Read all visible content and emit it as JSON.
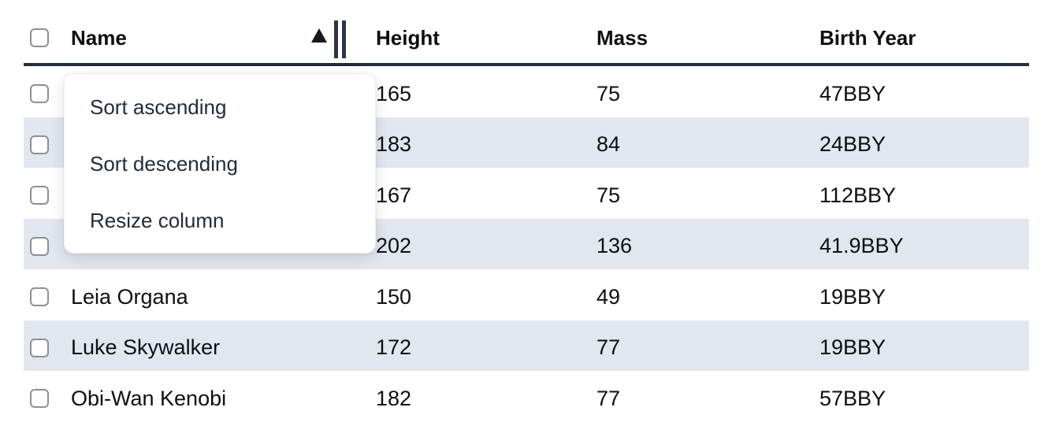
{
  "table": {
    "columns": [
      {
        "label": "Name",
        "sort": "ascending"
      },
      {
        "label": "Height",
        "sort": ""
      },
      {
        "label": "Mass",
        "sort": ""
      },
      {
        "label": "Birth Year",
        "sort": ""
      }
    ],
    "rows": [
      {
        "name": "",
        "height": "165",
        "mass": "75",
        "birth_year": "47BBY"
      },
      {
        "name": "",
        "height": "183",
        "mass": "84",
        "birth_year": "24BBY"
      },
      {
        "name": "",
        "height": "167",
        "mass": "75",
        "birth_year": "112BBY"
      },
      {
        "name": "",
        "height": "202",
        "mass": "136",
        "birth_year": "41.9BBY"
      },
      {
        "name": "Leia Organa",
        "height": "150",
        "mass": "49",
        "birth_year": "19BBY"
      },
      {
        "name": "Luke Skywalker",
        "height": "172",
        "mass": "77",
        "birth_year": "19BBY"
      },
      {
        "name": "Obi-Wan Kenobi",
        "height": "182",
        "mass": "77",
        "birth_year": "57BBY"
      }
    ]
  },
  "column_menu": {
    "items": [
      "Sort ascending",
      "Sort descending",
      "Resize column"
    ]
  },
  "icons": {
    "sort_ascending_indicator": "triangle-up-icon",
    "column_resize_indicator": "double-bar-resize-icon"
  },
  "colors": {
    "stripe": "#e2e6ee",
    "header_border": "#232d3f",
    "accent_dark": "#2b3547",
    "menu_text": "#212b3c"
  }
}
